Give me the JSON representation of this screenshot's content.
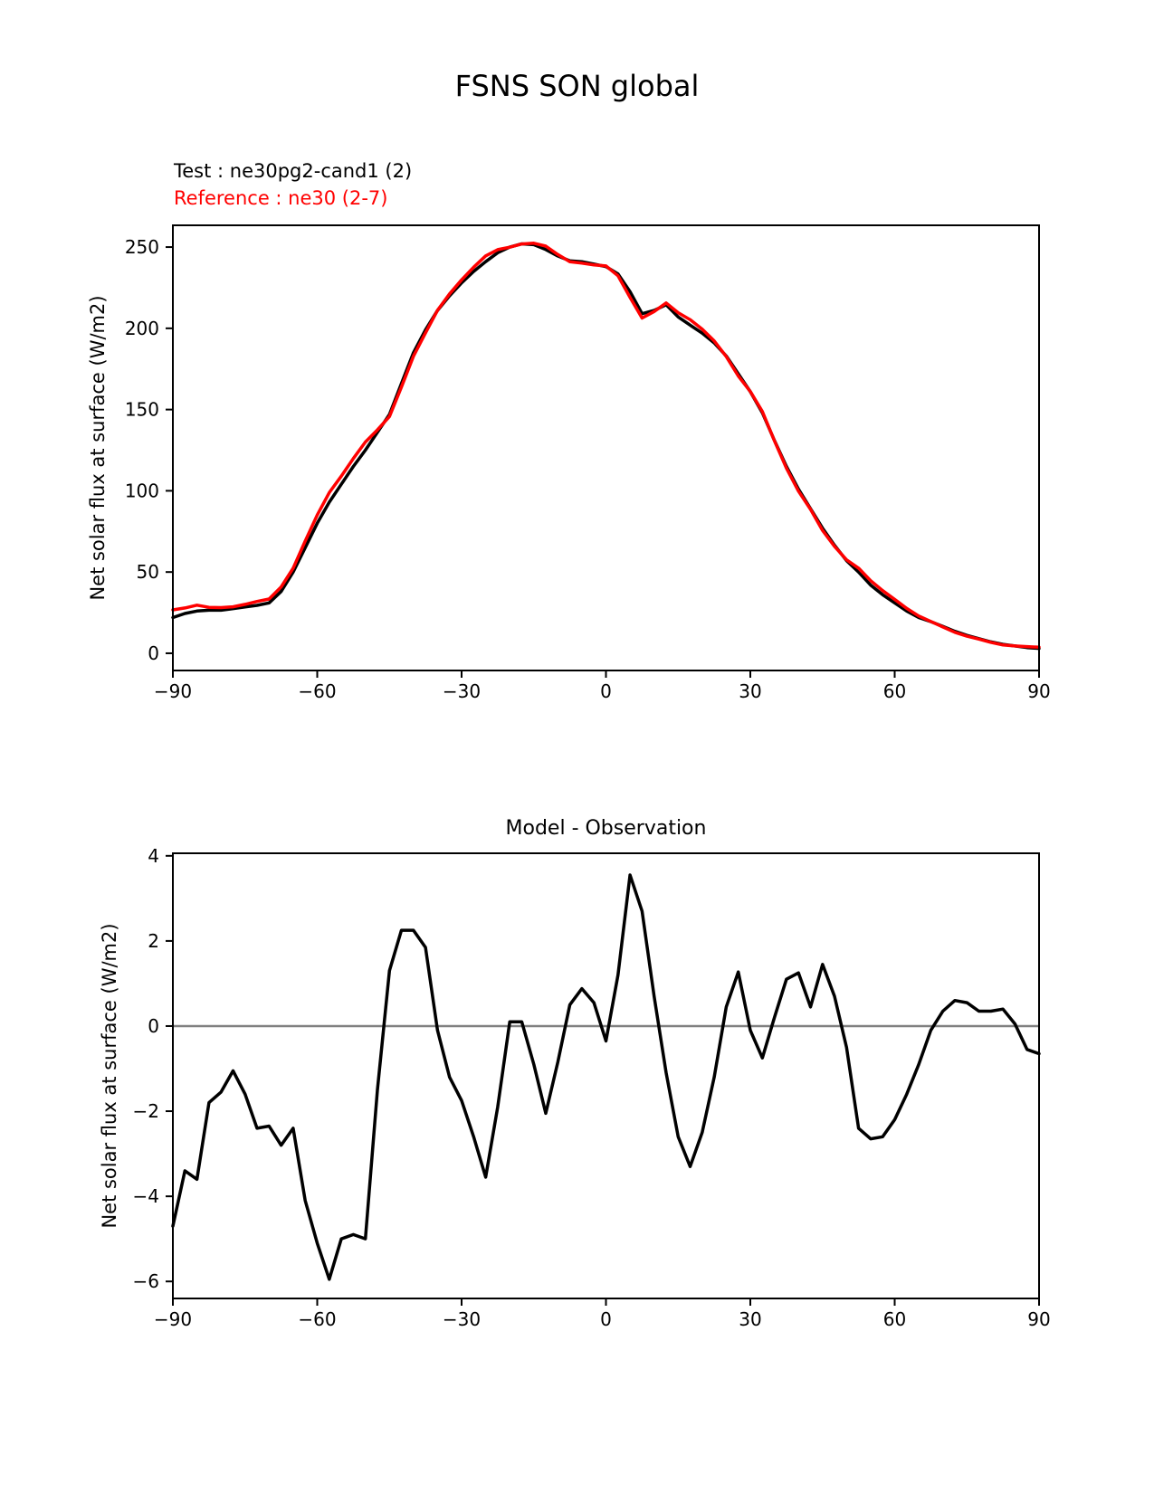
{
  "figure": {
    "title": "FSNS SON global",
    "legend": {
      "test_label": "Test : ne30pg2-cand1 (2)",
      "test_color": "#000000",
      "reference_label": "Reference : ne30 (2-7)",
      "reference_color": "#ff0000"
    }
  },
  "chart_data": [
    {
      "type": "line",
      "title": "FSNS SON global",
      "xlabel": "",
      "ylabel": "Net solar flux at surface (W/m2)",
      "xlim": [
        -90,
        90
      ],
      "ylim": [
        -10.6,
        263.4
      ],
      "x_ticks": [
        -90,
        -60,
        -30,
        0,
        30,
        60,
        90
      ],
      "y_ticks": [
        0,
        50,
        100,
        150,
        200,
        250
      ],
      "grid": false,
      "legend_position": "above-top-left",
      "x": [
        -90,
        -87.5,
        -85,
        -82.5,
        -80,
        -77.5,
        -75,
        -72.5,
        -70,
        -67.5,
        -65,
        -62.5,
        -60,
        -57.5,
        -55,
        -52.5,
        -50,
        -47.5,
        -45,
        -42.5,
        -40,
        -37.5,
        -35,
        -32.5,
        -30,
        -27.5,
        -25,
        -22.5,
        -20,
        -17.5,
        -15,
        -12.5,
        -10,
        -7.5,
        -5,
        -2.5,
        0,
        2.5,
        5,
        7.5,
        10,
        12.5,
        15,
        17.5,
        20,
        22.5,
        25,
        27.5,
        30,
        32.5,
        35,
        37.5,
        40,
        42.5,
        45,
        47.5,
        50,
        52.5,
        55,
        57.5,
        60,
        62.5,
        65,
        67.5,
        70,
        72.5,
        75,
        77.5,
        80,
        82.5,
        85,
        87.5,
        90
      ],
      "series": [
        {
          "name": "Test : ne30pg2-cand1 (2)",
          "color": "#000000",
          "values": [
            22,
            24.5,
            26,
            26.5,
            26.5,
            27.5,
            28.5,
            29.5,
            31,
            38,
            50,
            65,
            80,
            93,
            104,
            115,
            125,
            136,
            147,
            166,
            185,
            199,
            211,
            220,
            228,
            235,
            241,
            246.5,
            250,
            252,
            251.5,
            248.5,
            244.5,
            241.5,
            241,
            239.5,
            238,
            233.5,
            222.5,
            209,
            211,
            214.5,
            207,
            202,
            197,
            191,
            183,
            172,
            161,
            148,
            131,
            115,
            101,
            89,
            77,
            66.5,
            57,
            50,
            42,
            36,
            31,
            26,
            22,
            19.5,
            16.5,
            13.5,
            11,
            9,
            7,
            5.5,
            4.5,
            3.5,
            3
          ]
        },
        {
          "name": "Reference : ne30 (2-7)",
          "color": "#ff0000",
          "values": [
            26.7,
            27.9,
            29.6,
            28.3,
            28.1,
            28.6,
            30.1,
            31.9,
            33.4,
            40.8,
            52.4,
            69.1,
            85.1,
            98.9,
            109,
            119.9,
            130,
            137.5,
            145.7,
            163.8,
            182.8,
            197.2,
            211.1,
            221.2,
            229.8,
            237.6,
            244.6,
            248.4,
            249.9,
            251.9,
            252.4,
            250.6,
            245.4,
            241,
            240.1,
            239,
            238.4,
            232.3,
            219,
            206.3,
            210.3,
            215.6,
            209.6,
            205.3,
            199.5,
            192.2,
            182.6,
            170.7,
            161.1,
            148.8,
            130.8,
            113.9,
            99.8,
            88.6,
            75.6,
            65.8,
            57.5,
            52.4,
            44.7,
            38.6,
            33.2,
            27.6,
            22.9,
            19.6,
            16.2,
            12.9,
            10.5,
            8.7,
            6.7,
            5.1,
            4.5,
            4.1,
            3.7
          ]
        }
      ]
    },
    {
      "type": "line",
      "title": "Model - Observation",
      "xlabel": "",
      "ylabel": "Net solar flux at surface (W/m2)",
      "xlim": [
        -90,
        90
      ],
      "ylim": [
        -6.4,
        4.06
      ],
      "x_ticks": [
        -90,
        -60,
        -30,
        0,
        30,
        60,
        90
      ],
      "y_ticks": [
        4,
        2,
        0,
        -2,
        -4,
        -6
      ],
      "grid": false,
      "zero_line": true,
      "zero_line_color": "#808080",
      "x": [
        -90,
        -87.5,
        -85,
        -82.5,
        -80,
        -77.5,
        -75,
        -72.5,
        -70,
        -67.5,
        -65,
        -62.5,
        -60,
        -57.5,
        -55,
        -52.5,
        -50,
        -47.5,
        -45,
        -42.5,
        -40,
        -37.5,
        -35,
        -32.5,
        -30,
        -27.5,
        -25,
        -22.5,
        -20,
        -17.5,
        -15,
        -12.5,
        -10,
        -7.5,
        -5,
        -2.5,
        0,
        2.5,
        5,
        7.5,
        10,
        12.5,
        15,
        17.5,
        20,
        22.5,
        25,
        27.5,
        30,
        32.5,
        35,
        37.5,
        40,
        42.5,
        45,
        47.5,
        50,
        52.5,
        55,
        57.5,
        60,
        62.5,
        65,
        67.5,
        70,
        72.5,
        75,
        77.5,
        80,
        82.5,
        85,
        87.5,
        90
      ],
      "series": [
        {
          "name": "Model - Observation",
          "color": "#000000",
          "values": [
            -4.7,
            -3.4,
            -3.6,
            -1.8,
            -1.55,
            -1.05,
            -1.6,
            -2.4,
            -2.35,
            -2.8,
            -2.4,
            -4.1,
            -5.1,
            -5.95,
            -5,
            -4.9,
            -5,
            -1.5,
            1.3,
            2.25,
            2.25,
            1.85,
            -0.1,
            -1.2,
            -1.75,
            -2.6,
            -3.55,
            -1.9,
            0.1,
            0.1,
            -0.9,
            -2.05,
            -0.85,
            0.5,
            0.88,
            0.55,
            -0.35,
            1.2,
            3.55,
            2.7,
            0.7,
            -1.1,
            -2.6,
            -3.3,
            -2.5,
            -1.2,
            0.45,
            1.27,
            -0.1,
            -0.75,
            0.2,
            1.1,
            1.25,
            0.45,
            1.45,
            0.7,
            -0.5,
            -2.4,
            -2.65,
            -2.6,
            -2.2,
            -1.6,
            -0.9,
            -0.1,
            0.35,
            0.6,
            0.55,
            0.35,
            0.35,
            0.4,
            0.05,
            -0.55,
            -0.65
          ]
        }
      ]
    }
  ]
}
